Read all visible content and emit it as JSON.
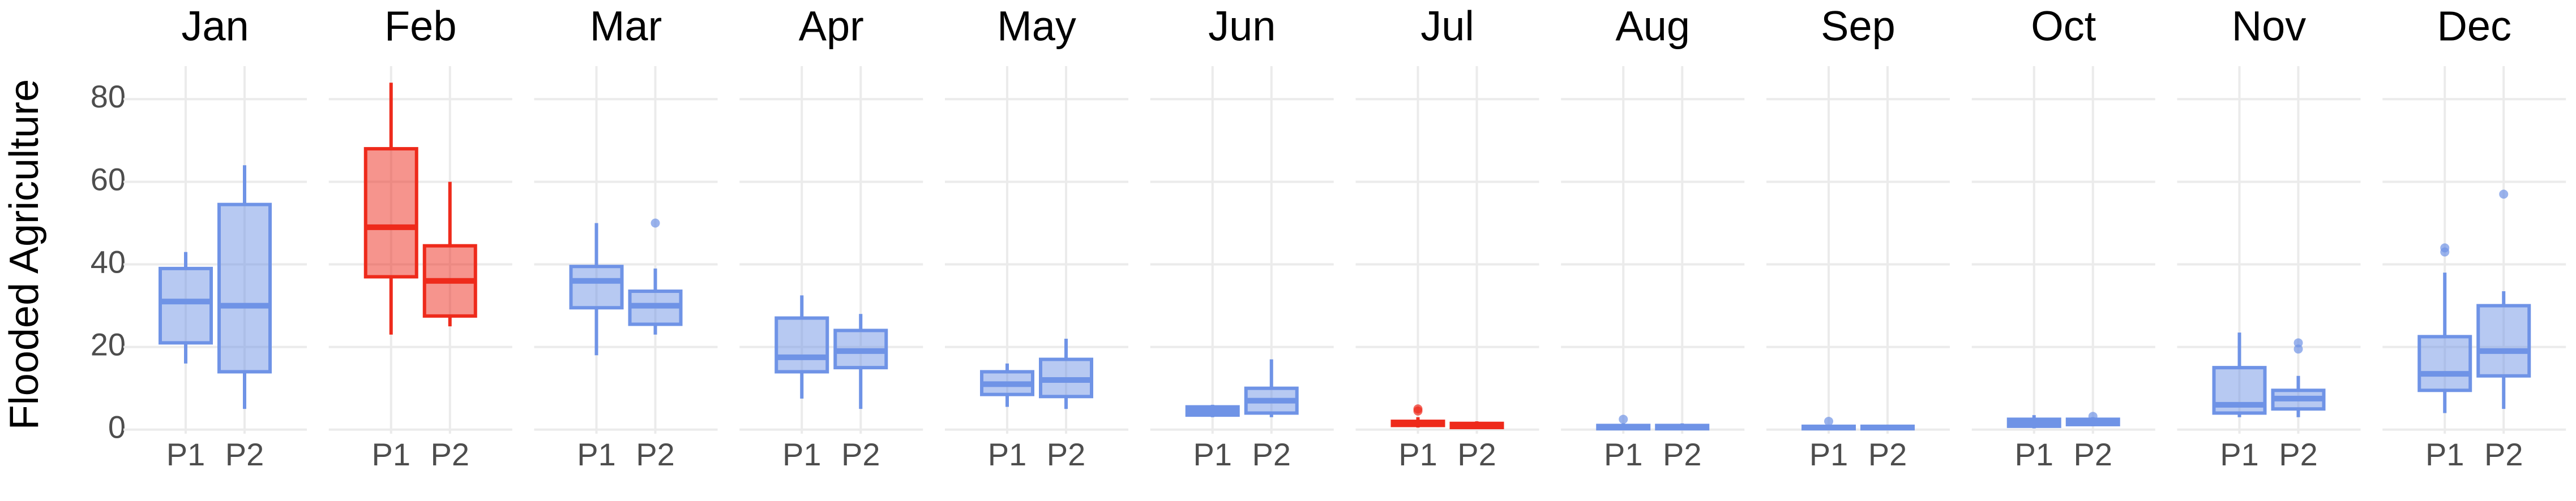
{
  "chart_data": {
    "type": "box",
    "y_label": "Flooded Agriculture",
    "ylim": [
      -1,
      88
    ],
    "yticks": [
      0,
      20,
      40,
      60,
      80
    ],
    "grid": true,
    "panels": [
      {
        "title": "Jan",
        "boxes": [
          {
            "name": "P1",
            "color": "#6f93e6",
            "min": 16,
            "q1": 21,
            "median": 31,
            "q3": 39,
            "max": 43,
            "outliers": []
          },
          {
            "name": "P2",
            "color": "#6f93e6",
            "min": 5,
            "q1": 14,
            "median": 30,
            "q3": 54.5,
            "max": 64,
            "outliers": []
          }
        ]
      },
      {
        "title": "Feb",
        "boxes": [
          {
            "name": "P1",
            "color": "#ee2a1b",
            "min": 23,
            "q1": 37,
            "median": 49,
            "q3": 68,
            "max": 84,
            "outliers": []
          },
          {
            "name": "P2",
            "color": "#ee2a1b",
            "min": 25,
            "q1": 27.5,
            "median": 36,
            "q3": 44.5,
            "max": 60,
            "outliers": []
          }
        ]
      },
      {
        "title": "Mar",
        "boxes": [
          {
            "name": "P1",
            "color": "#6f93e6",
            "min": 18,
            "q1": 29.5,
            "median": 36,
            "q3": 39.5,
            "max": 50,
            "outliers": []
          },
          {
            "name": "P2",
            "color": "#6f93e6",
            "min": 23,
            "q1": 25.5,
            "median": 30,
            "q3": 33.5,
            "max": 39,
            "outliers": [
              50
            ]
          }
        ]
      },
      {
        "title": "Apr",
        "boxes": [
          {
            "name": "P1",
            "color": "#6f93e6",
            "min": 7.5,
            "q1": 14,
            "median": 17.5,
            "q3": 27,
            "max": 32.5,
            "outliers": []
          },
          {
            "name": "P2",
            "color": "#6f93e6",
            "min": 5,
            "q1": 15,
            "median": 19,
            "q3": 24,
            "max": 28,
            "outliers": []
          }
        ]
      },
      {
        "title": "May",
        "boxes": [
          {
            "name": "P1",
            "color": "#6f93e6",
            "min": 5.5,
            "q1": 8.5,
            "median": 11,
            "q3": 14,
            "max": 16,
            "outliers": []
          },
          {
            "name": "P2",
            "color": "#6f93e6",
            "min": 5,
            "q1": 8,
            "median": 12,
            "q3": 17,
            "max": 22,
            "outliers": []
          }
        ]
      },
      {
        "title": "Jun",
        "boxes": [
          {
            "name": "P1",
            "color": "#6f93e6",
            "min": 3,
            "q1": 3.5,
            "median": 4.5,
            "q3": 5.5,
            "max": 6,
            "outliers": []
          },
          {
            "name": "P2",
            "color": "#6f93e6",
            "min": 3,
            "q1": 4,
            "median": 7,
            "q3": 10,
            "max": 17,
            "outliers": []
          }
        ]
      },
      {
        "title": "Jul",
        "boxes": [
          {
            "name": "P1",
            "color": "#ee2a1b",
            "min": 0.5,
            "q1": 1,
            "median": 1.5,
            "q3": 2,
            "max": 3,
            "outliers": [
              5,
              4.5
            ]
          },
          {
            "name": "P2",
            "color": "#ee2a1b",
            "min": 0.2,
            "q1": 0.5,
            "median": 1,
            "q3": 1.5,
            "max": 2,
            "outliers": []
          }
        ]
      },
      {
        "title": "Aug",
        "boxes": [
          {
            "name": "P1",
            "color": "#6f93e6",
            "min": 0,
            "q1": 0.2,
            "median": 0.5,
            "q3": 1,
            "max": 1.5,
            "outliers": [
              2.5
            ]
          },
          {
            "name": "P2",
            "color": "#6f93e6",
            "min": 0,
            "q1": 0.2,
            "median": 0.5,
            "q3": 1,
            "max": 1.5,
            "outliers": []
          }
        ]
      },
      {
        "title": "Sep",
        "boxes": [
          {
            "name": "P1",
            "color": "#6f93e6",
            "min": 0,
            "q1": 0.2,
            "median": 0.5,
            "q3": 0.8,
            "max": 1,
            "outliers": [
              2
            ]
          },
          {
            "name": "P2",
            "color": "#6f93e6",
            "min": 0,
            "q1": 0.2,
            "median": 0.5,
            "q3": 0.8,
            "max": 1,
            "outliers": []
          }
        ]
      },
      {
        "title": "Oct",
        "boxes": [
          {
            "name": "P1",
            "color": "#6f93e6",
            "min": 0.3,
            "q1": 0.8,
            "median": 1.5,
            "q3": 2.5,
            "max": 3.5,
            "outliers": []
          },
          {
            "name": "P2",
            "color": "#6f93e6",
            "min": 0.8,
            "q1": 1.2,
            "median": 1.8,
            "q3": 2.5,
            "max": 3,
            "outliers": [
              3.2
            ]
          }
        ]
      },
      {
        "title": "Nov",
        "boxes": [
          {
            "name": "P1",
            "color": "#6f93e6",
            "min": 3,
            "q1": 4,
            "median": 6,
            "q3": 15,
            "max": 23.5,
            "outliers": []
          },
          {
            "name": "P2",
            "color": "#6f93e6",
            "min": 3,
            "q1": 5,
            "median": 7.5,
            "q3": 9.5,
            "max": 13,
            "outliers": [
              19.5,
              21
            ]
          }
        ]
      },
      {
        "title": "Dec",
        "boxes": [
          {
            "name": "P1",
            "color": "#6f93e6",
            "min": 4,
            "q1": 9.5,
            "median": 13.5,
            "q3": 22.5,
            "max": 38,
            "outliers": [
              43,
              44
            ]
          },
          {
            "name": "P2",
            "color": "#6f93e6",
            "min": 5,
            "q1": 13,
            "median": 19,
            "q3": 30,
            "max": 33.5,
            "outliers": [
              57
            ]
          }
        ]
      }
    ]
  }
}
